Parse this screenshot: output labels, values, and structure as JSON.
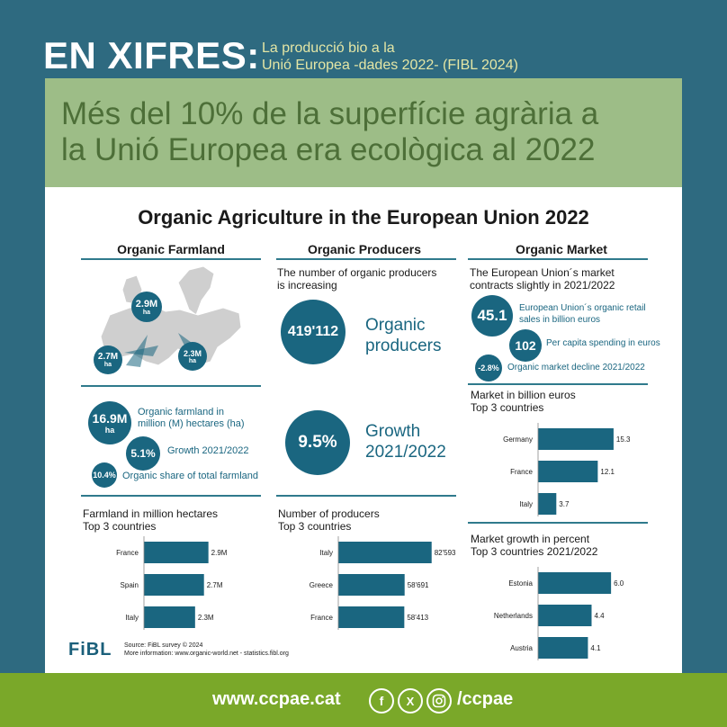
{
  "header": {
    "main": "EN XIFRES:",
    "sub_line1": "La producció bio a la",
    "sub_line2": "Unió Europea -dades 2022- (FIBL 2024)"
  },
  "headline": {
    "line1": "Més del 10% de la superfície agrària a",
    "line2": "la Unió Europea era ecològica al 2022"
  },
  "card": {
    "title": "Organic Agriculture in the European Union 2022",
    "farmland": {
      "heading": "Organic Farmland",
      "map_labels": [
        {
          "value": "2.9M",
          "unit": "ha"
        },
        {
          "value": "2.7M",
          "unit": "ha"
        },
        {
          "value": "2.3M",
          "unit": "ha"
        }
      ],
      "stat1_value": "16.9M",
      "stat1_unit": "ha",
      "stat1_label_line1": "Organic farmland in",
      "stat1_label_line2": "million (M) hectares (ha)",
      "stat2_value": "5.1%",
      "stat2_label": "Growth 2021/2022",
      "stat3_value": "10.4%",
      "stat3_label": "Organic share of total farmland",
      "chart_title_line1": "Farmland in million hectares",
      "chart_title_line2": "Top 3 countries"
    },
    "producers": {
      "heading": "Organic Producers",
      "intro_line1": "The number of organic producers",
      "intro_line2": "is increasing",
      "stat1_value": "419'112",
      "stat1_label_line1": "Organic",
      "stat1_label_line2": "producers",
      "stat2_value": "9.5%",
      "stat2_label_line1": "Growth",
      "stat2_label_line2": "2021/2022",
      "chart_title_line1": "Number of producers",
      "chart_title_line2": "Top 3 countries"
    },
    "market": {
      "heading": "Organic Market",
      "intro_line1": "The European Union´s market",
      "intro_line2": "contracts slightly in 2021/2022",
      "stat1_value": "45.1",
      "stat1_label_line1": "European Union´s organic retail",
      "stat1_label_line2": "sales in billion euros",
      "stat2_value": "102",
      "stat2_label": "Per capita spending in euros",
      "stat3_value": "-2.8%",
      "stat3_label": "Organic market decline 2021/2022",
      "chart1_title_line1": "Market in billion euros",
      "chart1_title_line2": "Top 3 countries",
      "chart2_title_line1": "Market growth in percent",
      "chart2_title_line2": "Top 3 countries 2021/2022"
    },
    "logo": "FiBL",
    "source_line1": "Source: FiBL survey © 2024",
    "source_line2": "More information: www.organic-world.net - statistics.fibl.org"
  },
  "footer": {
    "url": "www.ccpae.cat",
    "handle": "/ccpae",
    "icons": [
      "facebook-icon",
      "x-icon",
      "instagram-icon"
    ]
  },
  "colors": {
    "bar": "#1a6680",
    "accent_rule": "#2f7a8c",
    "headline_bg": "#9dbd87",
    "footer_bg": "#7aa829",
    "page_bg": "#2e6a80"
  },
  "chart_data": [
    {
      "type": "bar",
      "orientation": "horizontal",
      "title": "Farmland in million hectares",
      "categories": [
        "France",
        "Spain",
        "Italy"
      ],
      "values": [
        2.9,
        2.7,
        2.3
      ],
      "value_labels": [
        "2.9M",
        "2.7M",
        "2.3M"
      ],
      "xlim": [
        0,
        3.4
      ]
    },
    {
      "type": "bar",
      "orientation": "horizontal",
      "title": "Number of producers",
      "categories": [
        "Italy",
        "Greece",
        "France"
      ],
      "values": [
        82593,
        58691,
        58413
      ],
      "value_labels": [
        "82'593",
        "58'691",
        "58'413"
      ],
      "xlim": [
        0,
        86000
      ]
    },
    {
      "type": "bar",
      "orientation": "horizontal",
      "title": "Market in billion euros",
      "categories": [
        "Germany",
        "France",
        "Italy"
      ],
      "values": [
        15.3,
        12.1,
        3.7
      ],
      "value_labels": [
        "15.3",
        "12.1",
        "3.7"
      ],
      "xlim": [
        0,
        17.5
      ]
    },
    {
      "type": "bar",
      "orientation": "horizontal",
      "title": "Market growth in percent",
      "categories": [
        "Estonia",
        "Netherlands",
        "Austria"
      ],
      "values": [
        6.0,
        4.4,
        4.1
      ],
      "value_labels": [
        "6.0",
        "4.4",
        "4.1"
      ],
      "xlim": [
        0,
        7.1
      ]
    }
  ]
}
